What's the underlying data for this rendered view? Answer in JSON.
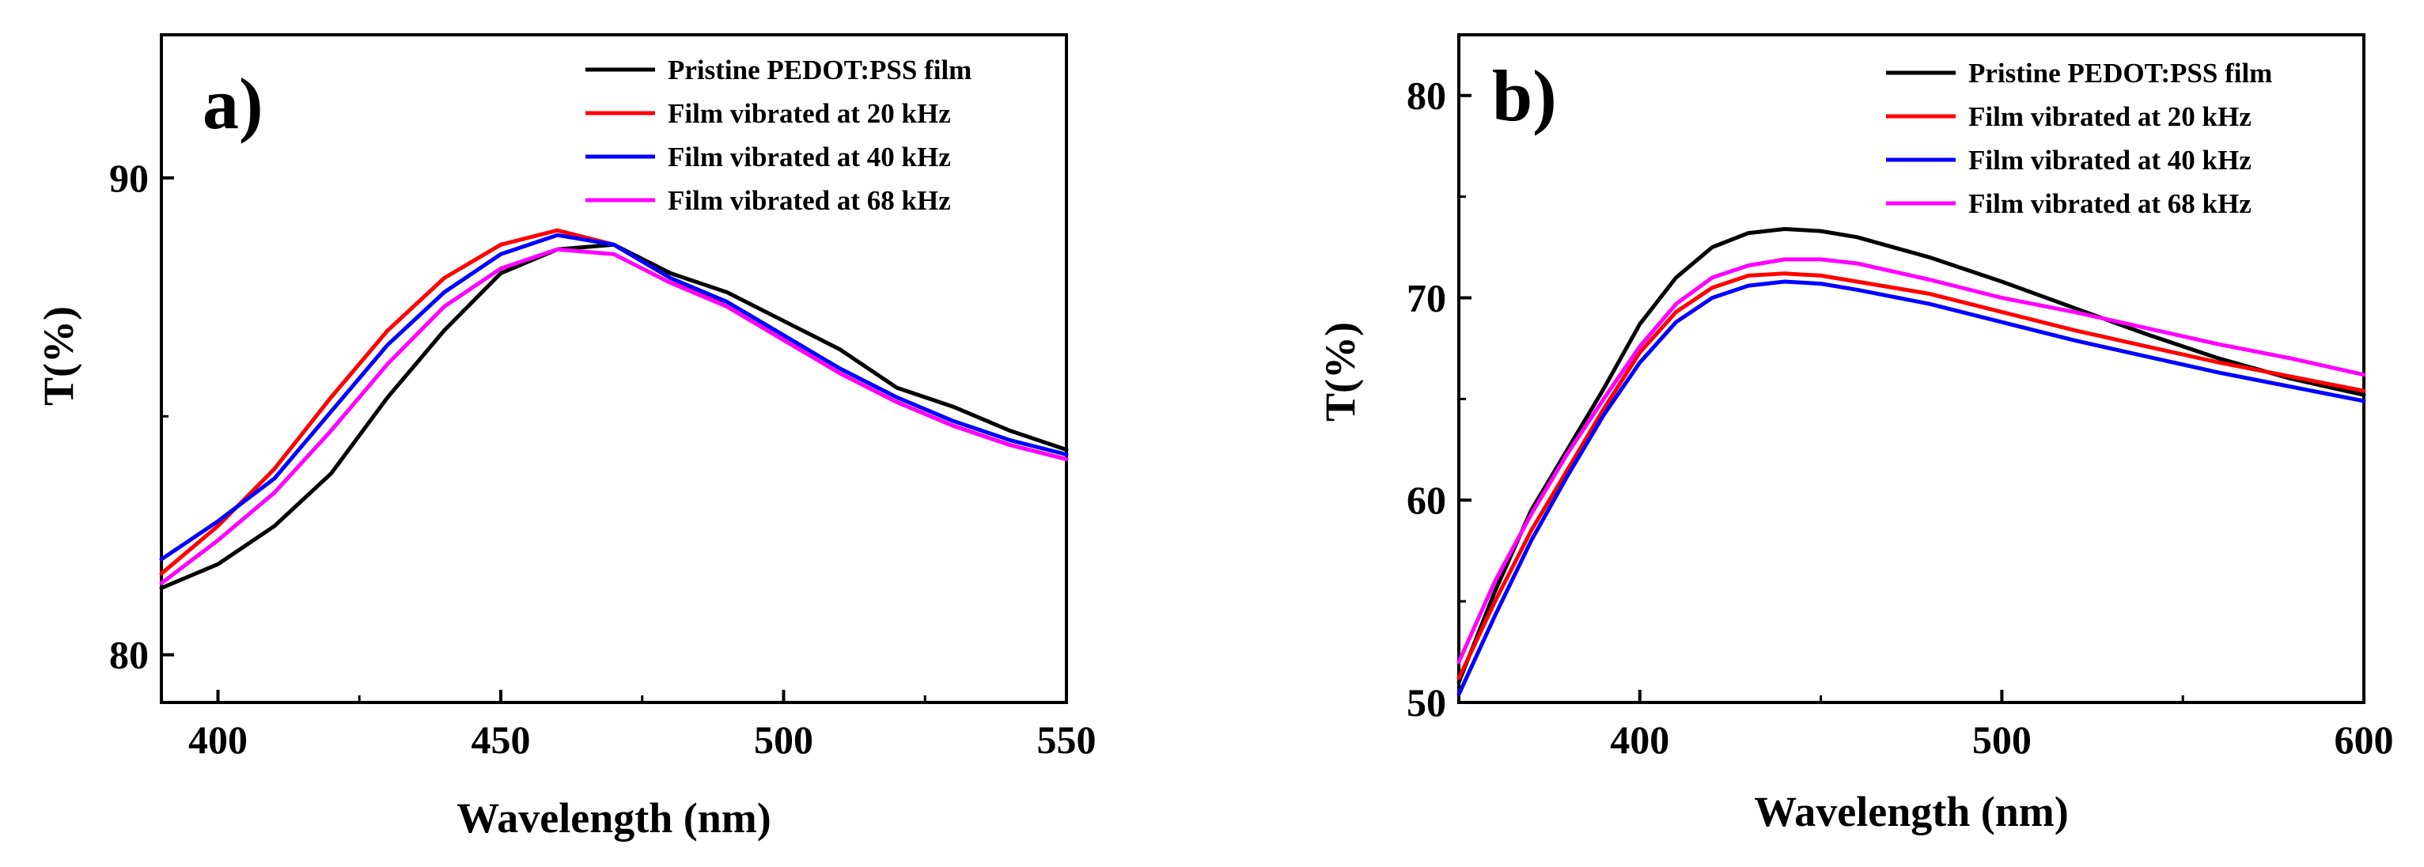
{
  "chart_data": [
    {
      "type": "line",
      "panel_label": "a)",
      "xlabel": "Wavelength (nm)",
      "ylabel": "T(%)",
      "xlim": [
        390,
        550
      ],
      "ylim": [
        79,
        93
      ],
      "x_ticks": [
        400,
        450,
        500,
        550
      ],
      "y_ticks": [
        80,
        90
      ],
      "grid": false,
      "legend_position": "top-right",
      "series": [
        {
          "name": "Pristine PEDOT:PSS film",
          "color": "#000000",
          "x": [
            390,
            400,
            410,
            420,
            430,
            440,
            450,
            460,
            470,
            480,
            490,
            500,
            510,
            520,
            530,
            540,
            550
          ],
          "y": [
            81.4,
            81.9,
            82.7,
            83.8,
            85.4,
            86.8,
            88.0,
            88.5,
            88.6,
            88.0,
            87.6,
            87.0,
            86.4,
            85.6,
            85.2,
            84.7,
            84.3
          ]
        },
        {
          "name": "Film vibrated at 20 kHz",
          "color": "#ff0000",
          "x": [
            390,
            400,
            410,
            420,
            430,
            440,
            450,
            460,
            470,
            480,
            490,
            500,
            510,
            520,
            530,
            540,
            550
          ],
          "y": [
            81.7,
            82.7,
            83.9,
            85.4,
            86.8,
            87.9,
            88.6,
            88.9,
            88.6,
            87.9,
            87.3,
            86.6,
            85.9,
            85.3,
            84.8,
            84.4,
            84.1
          ]
        },
        {
          "name": "Film vibrated at 40 kHz",
          "color": "#0000ff",
          "x": [
            390,
            400,
            410,
            420,
            430,
            440,
            450,
            460,
            470,
            480,
            490,
            500,
            510,
            520,
            530,
            540,
            550
          ],
          "y": [
            82.0,
            82.8,
            83.7,
            85.1,
            86.5,
            87.6,
            88.4,
            88.8,
            88.6,
            87.9,
            87.4,
            86.7,
            86.0,
            85.4,
            84.9,
            84.5,
            84.2
          ]
        },
        {
          "name": "Film vibrated at 68 kHz",
          "color": "#ff00ff",
          "x": [
            390,
            400,
            410,
            420,
            430,
            440,
            450,
            460,
            470,
            480,
            490,
            500,
            510,
            520,
            530,
            540,
            550
          ],
          "y": [
            81.5,
            82.4,
            83.4,
            84.7,
            86.1,
            87.3,
            88.1,
            88.5,
            88.4,
            87.8,
            87.3,
            86.6,
            85.9,
            85.3,
            84.8,
            84.4,
            84.1
          ]
        }
      ]
    },
    {
      "type": "line",
      "panel_label": "b)",
      "xlabel": "Wavelength (nm)",
      "ylabel": "T(%)",
      "xlim": [
        350,
        600
      ],
      "ylim": [
        50,
        83
      ],
      "x_ticks": [
        400,
        500,
        600
      ],
      "y_ticks": [
        50,
        60,
        70,
        80
      ],
      "grid": false,
      "legend_position": "top-right",
      "series": [
        {
          "name": "Pristine PEDOT:PSS film",
          "color": "#000000",
          "x": [
            350,
            360,
            370,
            380,
            390,
            400,
            410,
            420,
            430,
            440,
            450,
            460,
            480,
            500,
            520,
            540,
            560,
            580,
            600
          ],
          "y": [
            51.0,
            55.5,
            59.5,
            62.5,
            65.5,
            68.7,
            71.0,
            72.5,
            73.2,
            73.4,
            73.3,
            73.0,
            72.0,
            70.8,
            69.5,
            68.2,
            67.0,
            66.0,
            65.2
          ]
        },
        {
          "name": "Film vibrated at 20 kHz",
          "color": "#ff0000",
          "x": [
            350,
            360,
            370,
            380,
            390,
            400,
            410,
            420,
            430,
            440,
            450,
            460,
            480,
            500,
            520,
            540,
            560,
            580,
            600
          ],
          "y": [
            51.2,
            55.0,
            58.5,
            61.5,
            64.5,
            67.3,
            69.3,
            70.5,
            71.1,
            71.2,
            71.1,
            70.8,
            70.2,
            69.3,
            68.4,
            67.6,
            66.8,
            66.1,
            65.4
          ]
        },
        {
          "name": "Film vibrated at 40 kHz",
          "color": "#0000ff",
          "x": [
            350,
            360,
            370,
            380,
            390,
            400,
            410,
            420,
            430,
            440,
            450,
            460,
            480,
            500,
            520,
            540,
            560,
            580,
            600
          ],
          "y": [
            50.4,
            54.3,
            58.0,
            61.2,
            64.2,
            66.8,
            68.8,
            70.0,
            70.6,
            70.8,
            70.7,
            70.4,
            69.7,
            68.8,
            67.9,
            67.1,
            66.3,
            65.6,
            64.9
          ]
        },
        {
          "name": "Film vibrated at 68 kHz",
          "color": "#ff00ff",
          "x": [
            350,
            360,
            370,
            380,
            390,
            400,
            410,
            420,
            430,
            440,
            450,
            460,
            480,
            500,
            520,
            540,
            560,
            580,
            600
          ],
          "y": [
            52.0,
            56.0,
            59.3,
            62.3,
            65.0,
            67.6,
            69.7,
            71.0,
            71.6,
            71.9,
            71.9,
            71.7,
            70.9,
            70.0,
            69.3,
            68.5,
            67.7,
            67.0,
            66.2
          ]
        }
      ]
    }
  ]
}
